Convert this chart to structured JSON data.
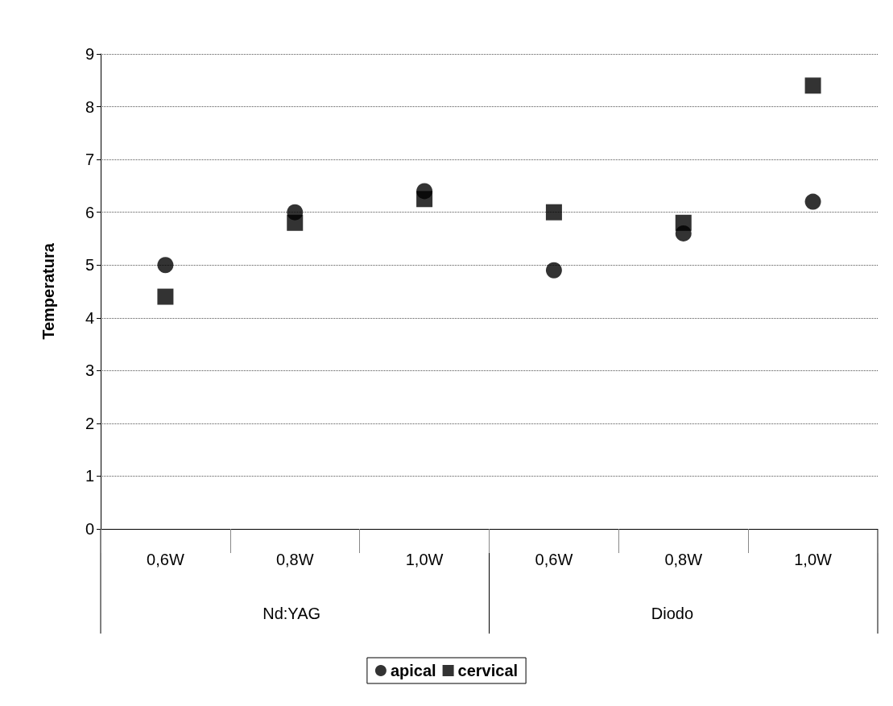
{
  "chart_data": {
    "type": "scatter",
    "ylabel": "Temperatura",
    "categories": [
      "0,6W",
      "0,8W",
      "1,0W",
      "0,6W",
      "0,8W",
      "1,0W"
    ],
    "series": [
      {
        "name": "apical",
        "color": "#000000",
        "marker": "circle",
        "values": [
          5.0,
          6.0,
          6.4,
          4.9,
          5.6,
          6.2
        ]
      },
      {
        "name": "cervical",
        "color": "#000000",
        "marker": "square",
        "values": [
          4.4,
          5.8,
          6.25,
          6.0,
          5.8,
          8.4
        ]
      }
    ],
    "annotations": [
      "Nd:YAG",
      "Diodo"
    ],
    "ylim": [
      0,
      9
    ],
    "yticks": [
      0,
      1,
      2,
      3,
      4,
      5,
      6,
      7,
      8,
      9
    ],
    "grid": "y",
    "legend": "bottom"
  }
}
